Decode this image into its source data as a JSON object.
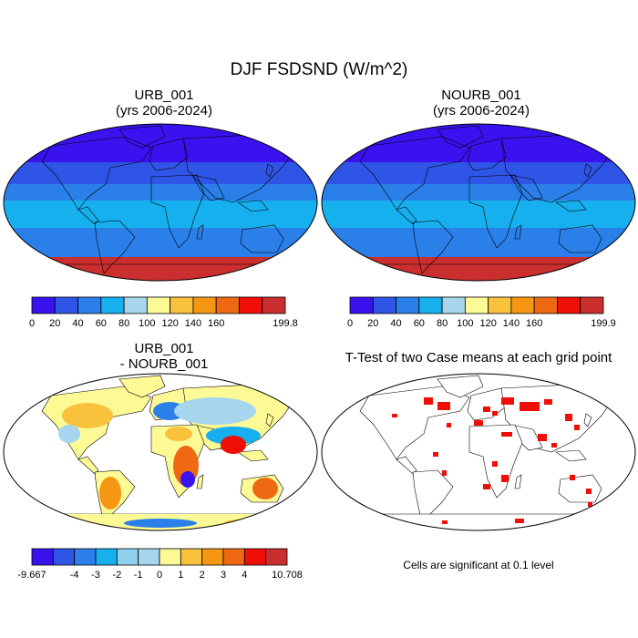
{
  "title": "DJF FSDSND (W/m^2)",
  "panels": [
    {
      "title_line1": "URB_001",
      "title_line2": "(yrs 2006-2024)"
    },
    {
      "title_line1": "NOURB_001",
      "title_line2": "(yrs 2006-2024)"
    },
    {
      "title_line1": "URB_001",
      "title_line2": "- NOURB_001"
    },
    {
      "title_line1": "T-Test of two Case means at each grid point"
    }
  ],
  "footnote": "Cells are significant at 0.1 level",
  "colorbars": [
    {
      "colors": [
        "#3a12f0",
        "#2f55e6",
        "#2a7fe9",
        "#16b0ee",
        "#a6d6ee",
        "#fdfa96",
        "#f8c23d",
        "#f59712",
        "#ef6912",
        "#f00f06",
        "#cb2e2e"
      ],
      "labels": [
        "0",
        "20",
        "40",
        "60",
        "80",
        "100",
        "120",
        "140",
        "160",
        "199.8"
      ]
    },
    {
      "colors": [
        "#3a12f0",
        "#2f55e6",
        "#2a7fe9",
        "#16b0ee",
        "#a6d6ee",
        "#fdfa96",
        "#f8c23d",
        "#f59712",
        "#ef6912",
        "#f00f06",
        "#cb2e2e"
      ],
      "labels": [
        "0",
        "20",
        "40",
        "60",
        "80",
        "100",
        "120",
        "140",
        "160",
        "199.9"
      ]
    },
    {
      "colors": [
        "#3a12f0",
        "#2f55e6",
        "#2a7fe9",
        "#16b0ee",
        "#8fd0ee",
        "#a6d6ee",
        "#fdfa96",
        "#f8c23d",
        "#f59712",
        "#ef6912",
        "#f00f06",
        "#cb2e2e"
      ],
      "labels": [
        "-9.667",
        "-4",
        "-3",
        "-2",
        "-1",
        "0",
        "1",
        "2",
        "3",
        "4",
        "10.708"
      ]
    }
  ]
}
